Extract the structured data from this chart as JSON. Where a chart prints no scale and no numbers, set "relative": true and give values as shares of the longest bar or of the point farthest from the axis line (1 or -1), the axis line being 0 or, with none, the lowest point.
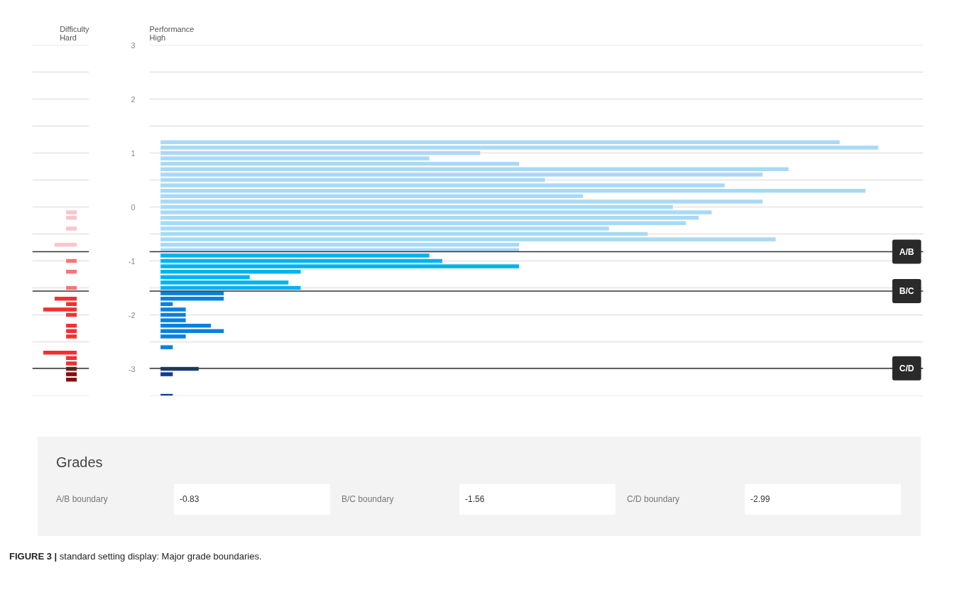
{
  "chart_data": [
    {
      "type": "bar",
      "orientation": "horizontal",
      "relative": true,
      "ylabel": "Difficulty\nHard",
      "x": [
        -3.2,
        -3.1,
        -3.0,
        -2.9,
        -2.8,
        -2.7,
        -2.4,
        -2.3,
        -2.2,
        -2.0,
        -1.9,
        -1.8,
        -1.7,
        -1.5,
        -1.2,
        -1.0,
        -0.7,
        -0.4,
        -0.2,
        -0.1
      ],
      "values": [
        0.333,
        0.333,
        0.333,
        0.333,
        0.333,
        1,
        0.333,
        0.333,
        0.333,
        0.333,
        1,
        0.333,
        0.667,
        0.333,
        0.333,
        0.333,
        0.667,
        0.333,
        0.333,
        0.333
      ],
      "colors": [
        "#8b0a0a",
        "#8b0a0a",
        "#8b0a0a",
        "#f42f2f",
        "#f42f2f",
        "#f42f2f",
        "#f42f2f",
        "#f42f2f",
        "#f42f2f",
        "#f42f2f",
        "#f42f2f",
        "#f42f2f",
        "#f42f2f",
        "#f47676",
        "#f47676",
        "#f47676",
        "#f9c5cb",
        "#f9c5cb",
        "#f9c5cb",
        "#f9c5cb"
      ],
      "ylim": [
        -3.5,
        3
      ],
      "yticks": [
        3,
        {
          "value": 2.5,
          "label": null
        },
        2,
        {
          "value": 1.5,
          "label": null
        },
        1,
        {
          "value": 0.5,
          "label": null
        },
        0,
        {
          "value": -0.5,
          "label": null
        },
        -1,
        {
          "value": -1.5,
          "label": null
        },
        -2,
        {
          "value": -2.5,
          "label": null
        },
        -3,
        {
          "value": -3.5,
          "label": null
        }
      ],
      "grid": "y",
      "tick_labels": false,
      "ref_lines": [
        {
          "axis": "y",
          "value": -0.83,
          "color": "#333333"
        },
        {
          "axis": "y",
          "value": -1.56,
          "color": "#333333"
        },
        {
          "axis": "y",
          "value": -2.99,
          "color": "#333333"
        }
      ]
    },
    {
      "type": "bar",
      "orientation": "horizontal",
      "relative": true,
      "ylabel": "Performance\nHigh",
      "x": [
        -3.5,
        -3.1,
        -3.0,
        -2.6,
        -2.4,
        -2.3,
        -2.2,
        -2.1,
        -2.0,
        -1.9,
        -1.8,
        -1.7,
        -1.6,
        -1.5,
        -1.4,
        -1.3,
        -1.2,
        -1.1,
        -1.0,
        -0.9,
        -0.8,
        -0.7,
        -0.6,
        -0.5,
        -0.4,
        -0.3,
        -0.2,
        -0.1,
        0,
        0.1,
        0.2,
        0.3,
        0.4,
        0.5,
        0.6,
        0.7,
        0.8,
        0.9,
        1.0,
        1.1,
        1.2
      ],
      "values": [
        0.018,
        0.018,
        0.054,
        0.018,
        0.036,
        0.089,
        0.071,
        0.036,
        0.036,
        0.036,
        0.018,
        0.089,
        0.089,
        0.196,
        0.179,
        0.125,
        0.196,
        0.5,
        0.393,
        0.375,
        0.5,
        0.5,
        0.857,
        0.679,
        0.625,
        0.732,
        0.75,
        0.768,
        0.714,
        0.839,
        0.589,
        0.982,
        0.786,
        0.536,
        0.839,
        0.875,
        0.5,
        0.375,
        0.446,
        1,
        0.946
      ],
      "colors": [
        "#0b3d91",
        "#0b3d91",
        "#0b3d91",
        "#0a80dd",
        "#0a80dd",
        "#0a80dd",
        "#0a80dd",
        "#0a80dd",
        "#0a80dd",
        "#0a80dd",
        "#0a80dd",
        "#0a80dd",
        "#0a80dd",
        "#00b2f2",
        "#00b2f2",
        "#00b2f2",
        "#00b2f2",
        "#00b2f2",
        "#00b2f2",
        "#00b2f2",
        "#a9d9f5",
        "#a9d9f5",
        "#a9d9f5",
        "#a9d9f5",
        "#a9d9f5",
        "#a9d9f5",
        "#a9d9f5",
        "#a9d9f5",
        "#a9d9f5",
        "#a9d9f5",
        "#a9d9f5",
        "#a9d9f5",
        "#a9d9f5",
        "#a9d9f5",
        "#a9d9f5",
        "#a9d9f5",
        "#a9d9f5",
        "#a9d9f5",
        "#a9d9f5",
        "#a9d9f5",
        "#a9d9f5"
      ],
      "ylim": [
        -3.5,
        3
      ],
      "yticks": [
        3,
        {
          "value": 2.5,
          "label": null
        },
        2,
        {
          "value": 1.5,
          "label": null
        },
        1,
        {
          "value": 0.5,
          "label": null
        },
        0,
        {
          "value": -0.5,
          "label": null
        },
        -1,
        {
          "value": -1.5,
          "label": null
        },
        -2,
        {
          "value": -2.5,
          "label": null
        },
        -3,
        {
          "value": -3.5,
          "label": null
        }
      ],
      "grid": "y",
      "tick_labels": "y",
      "ref_lines": [
        {
          "axis": "y",
          "value": -0.83,
          "label": "A/B",
          "color": "#333333"
        },
        {
          "axis": "y",
          "value": -1.56,
          "label": "B/C",
          "color": "#333333"
        },
        {
          "axis": "y",
          "value": -2.99,
          "label": "C/D",
          "color": "#333333"
        }
      ],
      "annotations": [
        "Grades",
        "A/B boundary",
        "-0.83",
        "B/C boundary",
        "-1.56",
        "C/D boundary",
        "-2.99",
        "FIGURE 3 | standard setting display: Major grade boundaries."
      ]
    }
  ]
}
